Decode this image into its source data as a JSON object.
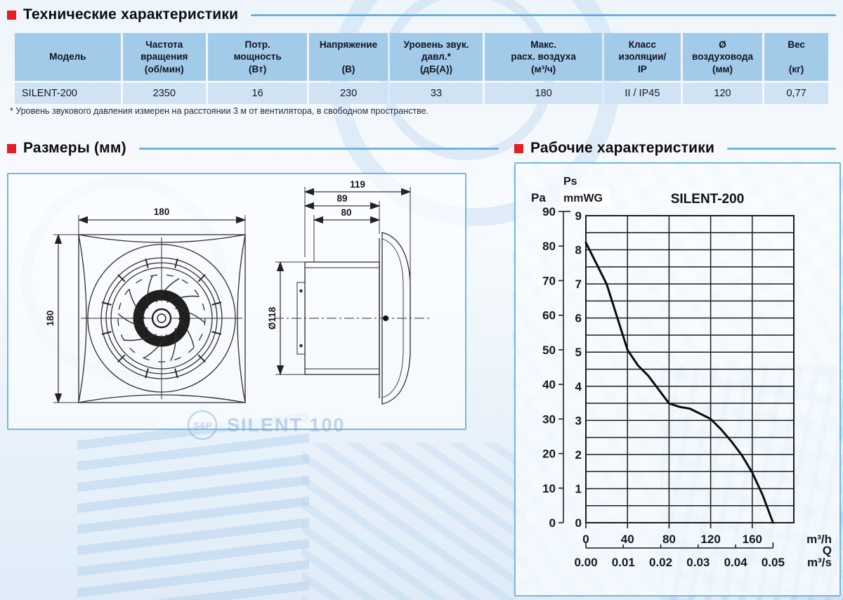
{
  "sections": {
    "tech_title": "Технические характеристики",
    "dims_title": "Размеры (мм)",
    "perf_title": "Рабочие характеристики"
  },
  "table": {
    "columns": [
      {
        "lines": [
          "Модель"
        ]
      },
      {
        "lines": [
          "Частота",
          "вращения",
          "(об/мин)"
        ]
      },
      {
        "lines": [
          "Потр.",
          "мощность",
          "(Вт)"
        ]
      },
      {
        "lines": [
          "Напряжение",
          "",
          "(В)"
        ]
      },
      {
        "lines": [
          "Уровень звук.",
          "давл.*",
          "(дБ(А))"
        ]
      },
      {
        "lines": [
          "Макс.",
          "расх. воздуха",
          "(м³/ч)"
        ]
      },
      {
        "lines": [
          "Класс",
          "изоляции/",
          "IP"
        ]
      },
      {
        "lines": [
          "Ø",
          "воздуховода",
          "(мм)"
        ]
      },
      {
        "lines": [
          "Вес",
          "",
          "(кг)"
        ]
      }
    ],
    "rows": [
      [
        "SILENT-200",
        "2350",
        "16",
        "230",
        "33",
        "180",
        "II / IP45",
        "120",
        "0,77"
      ]
    ],
    "footnote": "* Уровень звукового давления измерен на расстоянии 3 м от вентилятора, в свободном пространстве."
  },
  "drawing": {
    "front": {
      "width_label": "180",
      "height_label": "180"
    },
    "side": {
      "overall_depth": "119",
      "body_depth": "89",
      "duct_length": "80",
      "duct_diameter": "Ø118"
    },
    "watermark_logo": "S&P",
    "watermark_text": "SILENT 100"
  },
  "chart_data": {
    "type": "line",
    "title": "SILENT-200",
    "pressure_symbol": "Ps",
    "left_axis": {
      "label": "Pa",
      "min": 0,
      "max": 90,
      "step": 10
    },
    "right_axis": {
      "label": "mmWG",
      "min": 0,
      "max": 9,
      "step": 1,
      "minor": 0.5
    },
    "x_axis": {
      "label": "m³/h",
      "min": 0,
      "max": 200,
      "ticks": [
        0,
        40,
        80,
        120,
        160
      ]
    },
    "secondary_x_axis": {
      "name": "Q",
      "label": "m³/s",
      "ticks": [
        "0.00",
        "0.01",
        "0.02",
        "0.03",
        "0.04",
        "0.05"
      ],
      "step_in_m3h": 36
    },
    "grid": true,
    "legend_position": "none",
    "series": [
      {
        "name": "SILENT-200",
        "x_units": "m³/h",
        "y_units": "Pa",
        "points": [
          [
            0,
            81
          ],
          [
            10,
            75
          ],
          [
            20,
            69
          ],
          [
            30,
            59.5
          ],
          [
            40,
            50
          ],
          [
            50,
            45.5
          ],
          [
            60,
            42.5
          ],
          [
            70,
            38.5
          ],
          [
            80,
            34.5
          ],
          [
            90,
            33.5
          ],
          [
            100,
            33
          ],
          [
            110,
            31.5
          ],
          [
            120,
            30
          ],
          [
            130,
            27
          ],
          [
            140,
            23.5
          ],
          [
            150,
            19.5
          ],
          [
            160,
            14.5
          ],
          [
            170,
            8
          ],
          [
            180,
            0
          ]
        ]
      }
    ]
  },
  "colors": {
    "accent_red": "#e31e24",
    "rule_blue": "#55abdc",
    "table_header_bg": "#a2cbe9",
    "table_row_bg": "#d0e3f4",
    "panel_border": "#74b7e0",
    "grid_line": "#1c1c1c",
    "curve": "#0c0c0c"
  }
}
